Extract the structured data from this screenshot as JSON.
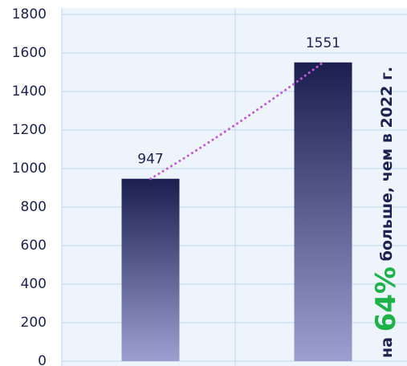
{
  "chart_data": {
    "type": "bar",
    "categories": [
      null,
      null
    ],
    "values": [
      947,
      1551
    ],
    "value_labels": [
      "947",
      "1551"
    ],
    "ylim": [
      0,
      1800
    ],
    "yticks": [
      0,
      200,
      400,
      600,
      800,
      1000,
      1200,
      1400,
      1600,
      1800
    ],
    "grid": true,
    "trend_color": "#c25bd6",
    "annotation": {
      "prefix": "на",
      "highlight": "64%",
      "suffix": "больше, чем в 2022 г."
    }
  }
}
